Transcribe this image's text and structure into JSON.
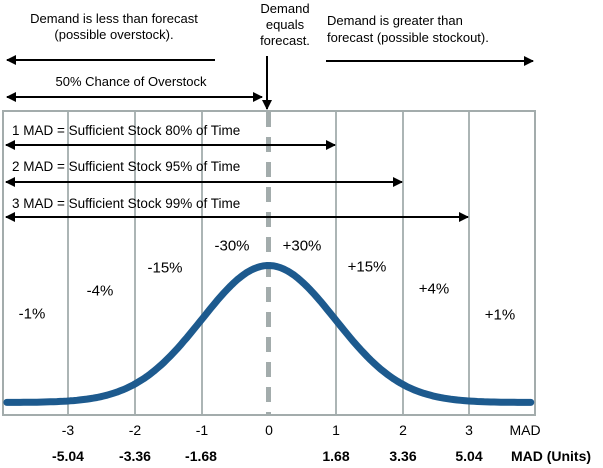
{
  "header": {
    "less_line1": "Demand is less than forecast",
    "less_line2": "(possible overstock).",
    "equals_line1": "Demand",
    "equals_line2": "equals",
    "equals_line3": "forecast.",
    "greater_line1": "Demand is greater than",
    "greater_line2": "forecast (possible stockout).",
    "overstock_chance": "50% Chance of Overstock"
  },
  "mad_levels": [
    {
      "label": "1 MAD = Sufficient Stock 80% of Time"
    },
    {
      "label": "2 MAD = Sufficient Stock 95% of Time"
    },
    {
      "label": "3 MAD = Sufficient Stock 99% of Time"
    }
  ],
  "segments": [
    {
      "label": "-1%"
    },
    {
      "label": "-4%"
    },
    {
      "label": "-15%"
    },
    {
      "label": "-30%"
    },
    {
      "label": "+30%"
    },
    {
      "label": "+15%"
    },
    {
      "label": "+4%"
    },
    {
      "label": "+1%"
    }
  ],
  "axis": {
    "mad_ticks": [
      "-3",
      "-2",
      "-1",
      "0",
      "1",
      "2",
      "3"
    ],
    "mad_label": "MAD",
    "unit_ticks": [
      "-5.04",
      "-3.36",
      "-1.68",
      "1.68",
      "3.36",
      "5.04"
    ],
    "unit_label": "MAD (Units)"
  },
  "colors": {
    "curve": "#1d5a8e",
    "grid": "#a3acac",
    "arrow": "#000000"
  },
  "chart_data": {
    "type": "area",
    "curve": {
      "distribution": "normal",
      "mean": 0,
      "sigma_mad": 1,
      "x_range_mad": [
        -4,
        4
      ]
    },
    "x_ticks_mad": [
      -3,
      -2,
      -1,
      0,
      1,
      2,
      3
    ],
    "x_ticks_units": [
      -5.04,
      -3.36,
      -1.68,
      1.68,
      3.36,
      5.04
    ],
    "units_per_mad": 1.68,
    "xlabel_mad": "MAD",
    "xlabel_units": "MAD (Units)",
    "band_percentages": [
      {
        "band_mad": "[-4,-3]",
        "label": "-1%",
        "value": 1
      },
      {
        "band_mad": "[-3,-2]",
        "label": "-4%",
        "value": 4
      },
      {
        "band_mad": "[-2,-1]",
        "label": "-15%",
        "value": 15
      },
      {
        "band_mad": "[-1,0]",
        "label": "-30%",
        "value": 30
      },
      {
        "band_mad": "[0,1]",
        "label": "+30%",
        "value": 30
      },
      {
        "band_mad": "[1,2]",
        "label": "+15%",
        "value": 15
      },
      {
        "band_mad": "[2,3]",
        "label": "+4%",
        "value": 4
      },
      {
        "band_mad": "[3,4]",
        "label": "+1%",
        "value": 1
      }
    ],
    "service_levels": [
      {
        "mad": 1,
        "sufficient_stock_pct": 80
      },
      {
        "mad": 2,
        "sufficient_stock_pct": 95
      },
      {
        "mad": 3,
        "sufficient_stock_pct": 99
      }
    ],
    "overstock_chance_pct": 50,
    "grid": true,
    "legend": false
  }
}
